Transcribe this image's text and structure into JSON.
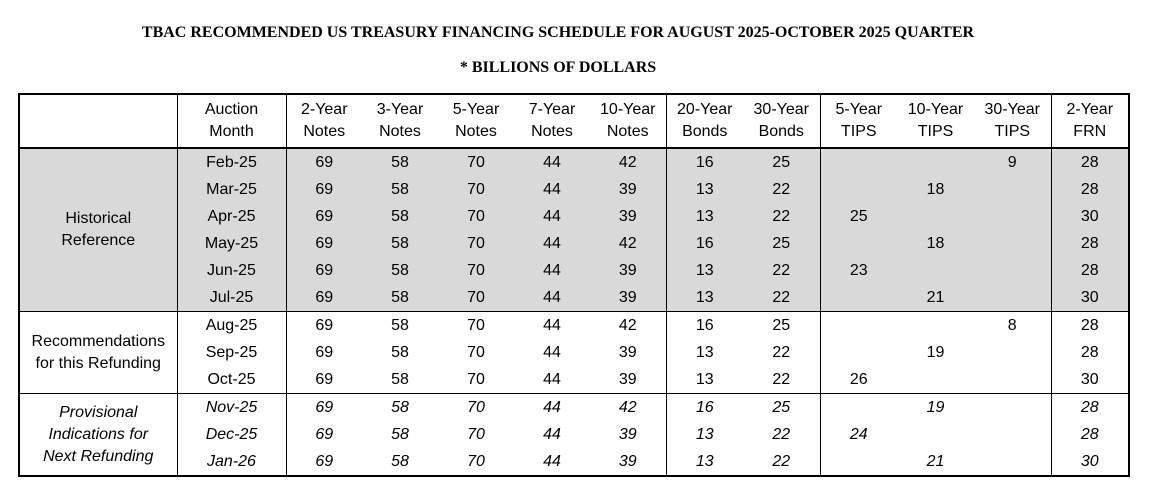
{
  "title": "TBAC RECOMMENDED US TREASURY FINANCING SCHEDULE FOR AUGUST 2025-OCTOBER 2025 QUARTER",
  "subtitle": "* BILLIONS OF DOLLARS",
  "headers": [
    [
      "Auction",
      "Month"
    ],
    [
      "2-Year",
      "Notes"
    ],
    [
      "3-Year",
      "Notes"
    ],
    [
      "5-Year",
      "Notes"
    ],
    [
      "7-Year",
      "Notes"
    ],
    [
      "10-Year",
      "Notes"
    ],
    [
      "20-Year",
      "Bonds"
    ],
    [
      "30-Year",
      "Bonds"
    ],
    [
      "5-Year",
      "TIPS"
    ],
    [
      "10-Year",
      "TIPS"
    ],
    [
      "30-Year",
      "TIPS"
    ],
    [
      "2-Year",
      "FRN"
    ]
  ],
  "groups": [
    {
      "label": [
        "Historical",
        "Reference"
      ],
      "rows": [
        [
          "Feb-25",
          "69",
          "58",
          "70",
          "44",
          "42",
          "16",
          "25",
          "",
          "",
          "9",
          "28"
        ],
        [
          "Mar-25",
          "69",
          "58",
          "70",
          "44",
          "39",
          "13",
          "22",
          "",
          "18",
          "",
          "28"
        ],
        [
          "Apr-25",
          "69",
          "58",
          "70",
          "44",
          "39",
          "13",
          "22",
          "25",
          "",
          "",
          "30"
        ],
        [
          "May-25",
          "69",
          "58",
          "70",
          "44",
          "42",
          "16",
          "25",
          "",
          "18",
          "",
          "28"
        ],
        [
          "Jun-25",
          "69",
          "58",
          "70",
          "44",
          "39",
          "13",
          "22",
          "23",
          "",
          "",
          "28"
        ],
        [
          "Jul-25",
          "69",
          "58",
          "70",
          "44",
          "39",
          "13",
          "22",
          "",
          "21",
          "",
          "30"
        ]
      ]
    },
    {
      "label": [
        "Recommendations",
        "for this Refunding"
      ],
      "rows": [
        [
          "Aug-25",
          "69",
          "58",
          "70",
          "44",
          "42",
          "16",
          "25",
          "",
          "",
          "8",
          "28"
        ],
        [
          "Sep-25",
          "69",
          "58",
          "70",
          "44",
          "39",
          "13",
          "22",
          "",
          "19",
          "",
          "28"
        ],
        [
          "Oct-25",
          "69",
          "58",
          "70",
          "44",
          "39",
          "13",
          "22",
          "26",
          "",
          "",
          "30"
        ]
      ]
    },
    {
      "label": [
        "Provisional",
        "Indications for",
        "Next Refunding"
      ],
      "rows": [
        [
          "Nov-25",
          "69",
          "58",
          "70",
          "44",
          "42",
          "16",
          "25",
          "",
          "19",
          "",
          "28"
        ],
        [
          "Dec-25",
          "69",
          "58",
          "70",
          "44",
          "39",
          "13",
          "22",
          "24",
          "",
          "",
          "28"
        ],
        [
          "Jan-26",
          "69",
          "58",
          "70",
          "44",
          "39",
          "13",
          "22",
          "",
          "21",
          "",
          "30"
        ]
      ]
    }
  ]
}
